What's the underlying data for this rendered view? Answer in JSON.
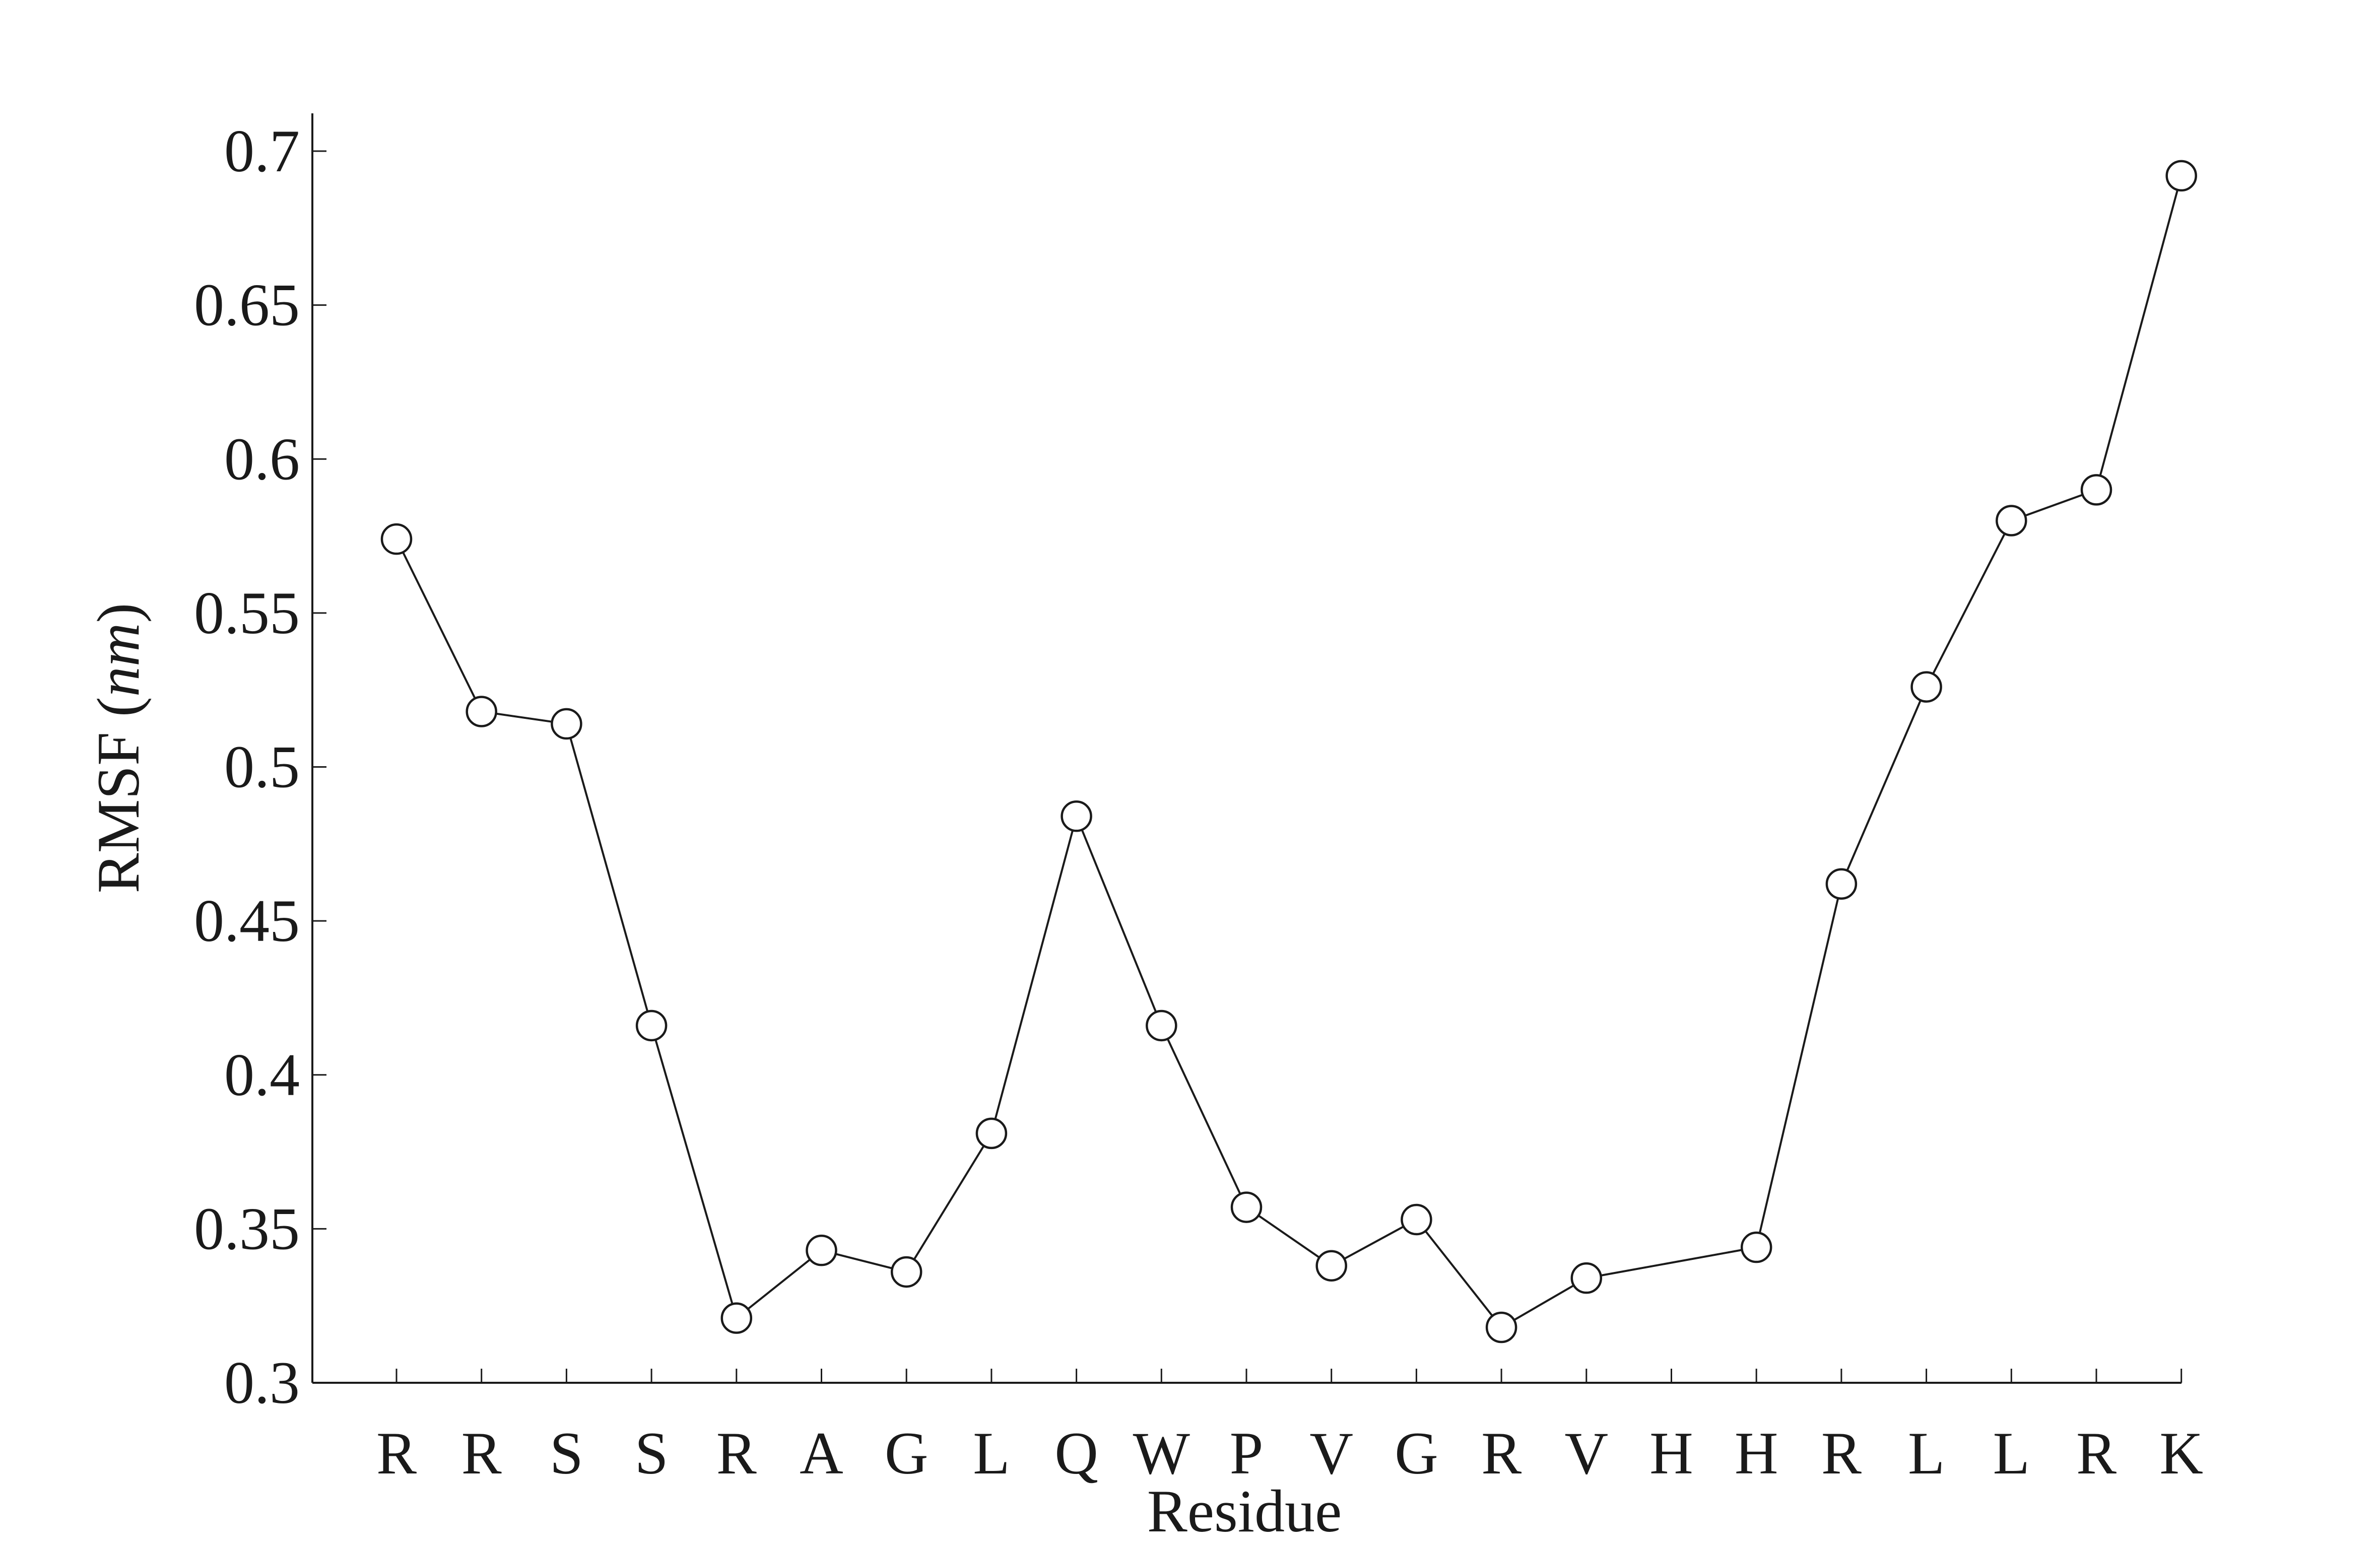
{
  "chart_data": {
    "type": "line",
    "title": "",
    "xlabel": "Residue",
    "ylabel_main": "RMSF (",
    "ylabel_unit": "nm",
    "ylabel_close": ")",
    "categories": [
      "R",
      "R",
      "S",
      "S",
      "R",
      "A",
      "G",
      "L",
      "Q",
      "W",
      "P",
      "V",
      "G",
      "R",
      "V",
      "H",
      "H",
      "R",
      "L",
      "L",
      "R",
      "K"
    ],
    "series": [
      {
        "points": [
          {
            "index": 0,
            "value": 0.574
          },
          {
            "index": 1,
            "value": 0.518
          },
          {
            "index": 2,
            "value": 0.514
          },
          {
            "index": 3,
            "value": 0.416
          },
          {
            "index": 4,
            "value": 0.321
          },
          {
            "index": 5,
            "value": 0.343
          },
          {
            "index": 6,
            "value": 0.336
          },
          {
            "index": 7,
            "value": 0.381
          },
          {
            "index": 8,
            "value": 0.484
          },
          {
            "index": 9,
            "value": 0.416
          },
          {
            "index": 10,
            "value": 0.357
          },
          {
            "index": 11,
            "value": 0.338
          },
          {
            "index": 12,
            "value": 0.353
          },
          {
            "index": 13,
            "value": 0.318
          },
          {
            "index": 14,
            "value": 0.334
          },
          {
            "index": 16,
            "value": 0.344
          },
          {
            "index": 17,
            "value": 0.462
          },
          {
            "index": 18,
            "value": 0.526
          },
          {
            "index": 19,
            "value": 0.58
          },
          {
            "index": 20,
            "value": 0.59
          },
          {
            "index": 21,
            "value": 0.692
          }
        ]
      }
    ],
    "yticks": [
      "0.3",
      "0.35",
      "0.4",
      "0.45",
      "0.5",
      "0.55",
      "0.6",
      "0.65",
      "0.7"
    ],
    "ylim": [
      0.3,
      0.7
    ],
    "grid": false,
    "marker": "open-circle",
    "colors": {
      "line": "#1a1a1a",
      "marker_fill": "#ffffff",
      "background": "#ffffff"
    }
  }
}
